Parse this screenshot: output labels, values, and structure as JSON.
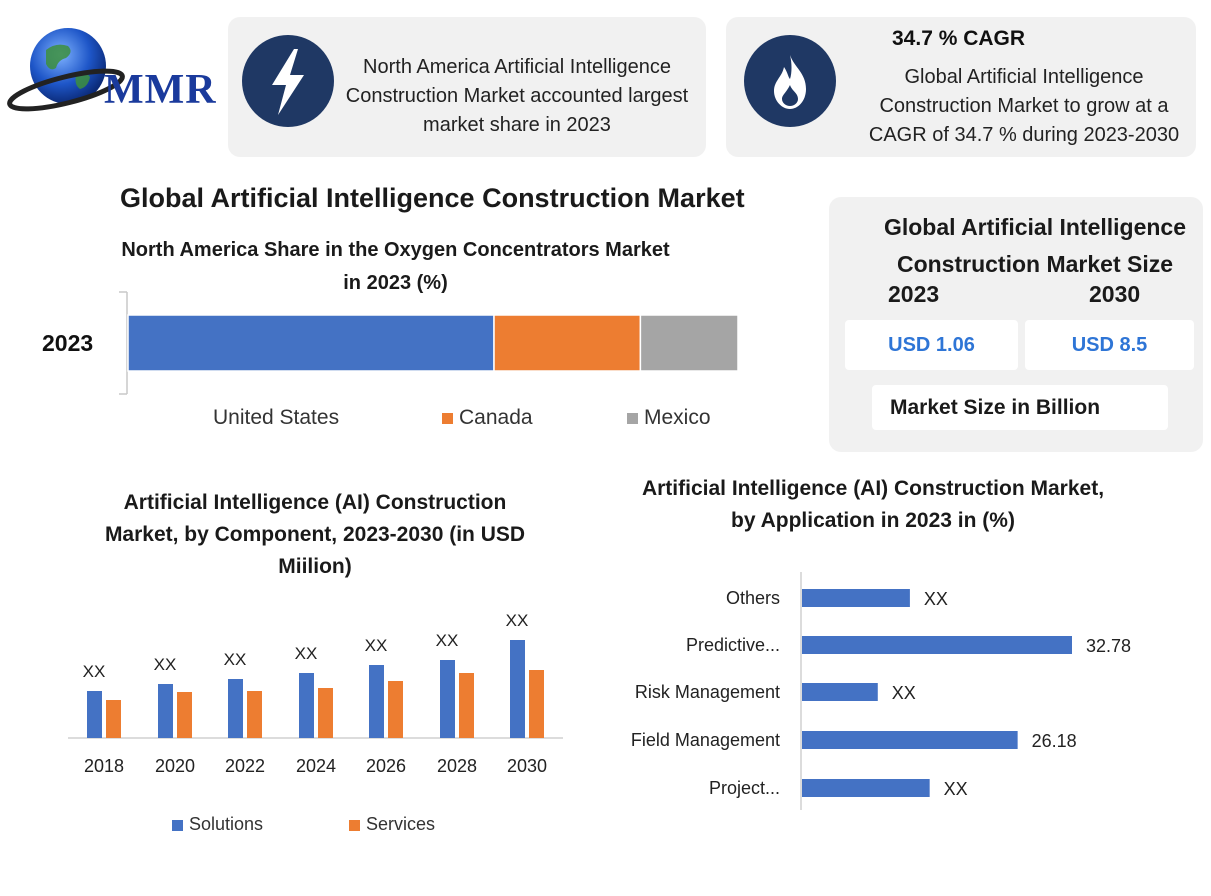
{
  "logo": {
    "text": "MMR"
  },
  "card1": {
    "text": "North America Artificial Intelligence Construction Market accounted largest market share in 2023",
    "icon": "lightning-icon"
  },
  "card2": {
    "heading": "34.7 % CAGR",
    "text": "Global Artificial Intelligence Construction Market to grow at a CAGR of 34.7 % during 2023-2030",
    "icon": "flame-icon"
  },
  "main_title": "Global Artificial Intelligence Construction Market",
  "market_size": {
    "title": "Global Artificial Intelligence Construction Market Size",
    "year_left": "2023",
    "year_right": "2030",
    "value_left": "USD 1.06",
    "value_right": "USD 8.5",
    "footer": "Market Size in Billion"
  },
  "colors": {
    "blue": "#4472c4",
    "orange": "#ed7d31",
    "gray": "#a5a5a5",
    "navy": "#1f3864"
  },
  "chart_data": [
    {
      "type": "bar",
      "orientation": "horizontal-stacked",
      "title": "North America Share in the Oxygen Concentrators Market in 2023 (%)",
      "categories": [
        "2023"
      ],
      "series": [
        {
          "name": "United States",
          "values": [
            60
          ]
        },
        {
          "name": "Canada",
          "values": [
            24
          ]
        },
        {
          "name": "Mexico",
          "values": [
            16
          ]
        }
      ],
      "legend": "bottom"
    },
    {
      "type": "bar",
      "title": "Artificial Intelligence (AI) Construction Market, by Component, 2023-2030 (in USD Miilion)",
      "categories": [
        "2018",
        "2020",
        "2022",
        "2024",
        "2026",
        "2028",
        "2030"
      ],
      "series": [
        {
          "name": "Solutions",
          "values": [
            47,
            54,
            59,
            65,
            73,
            78,
            98
          ]
        },
        {
          "name": "Services",
          "values": [
            38,
            46,
            47,
            50,
            57,
            65,
            68
          ]
        }
      ],
      "data_labels": [
        "XX",
        "XX",
        "XX",
        "XX",
        "XX",
        "XX",
        "XX"
      ],
      "legend": "bottom"
    },
    {
      "type": "bar",
      "orientation": "horizontal",
      "title": "Artificial Intelligence (AI) Construction Market, by Application in 2023 in (%)",
      "categories": [
        "Others",
        "Predictive...",
        "Risk Management",
        "Field Management",
        "Project..."
      ],
      "values": [
        13.1,
        32.78,
        9.2,
        26.18,
        15.5
      ],
      "data_labels": [
        "XX",
        "32.78",
        "XX",
        "26.18",
        "XX"
      ],
      "xlim": [
        0,
        36
      ]
    }
  ]
}
